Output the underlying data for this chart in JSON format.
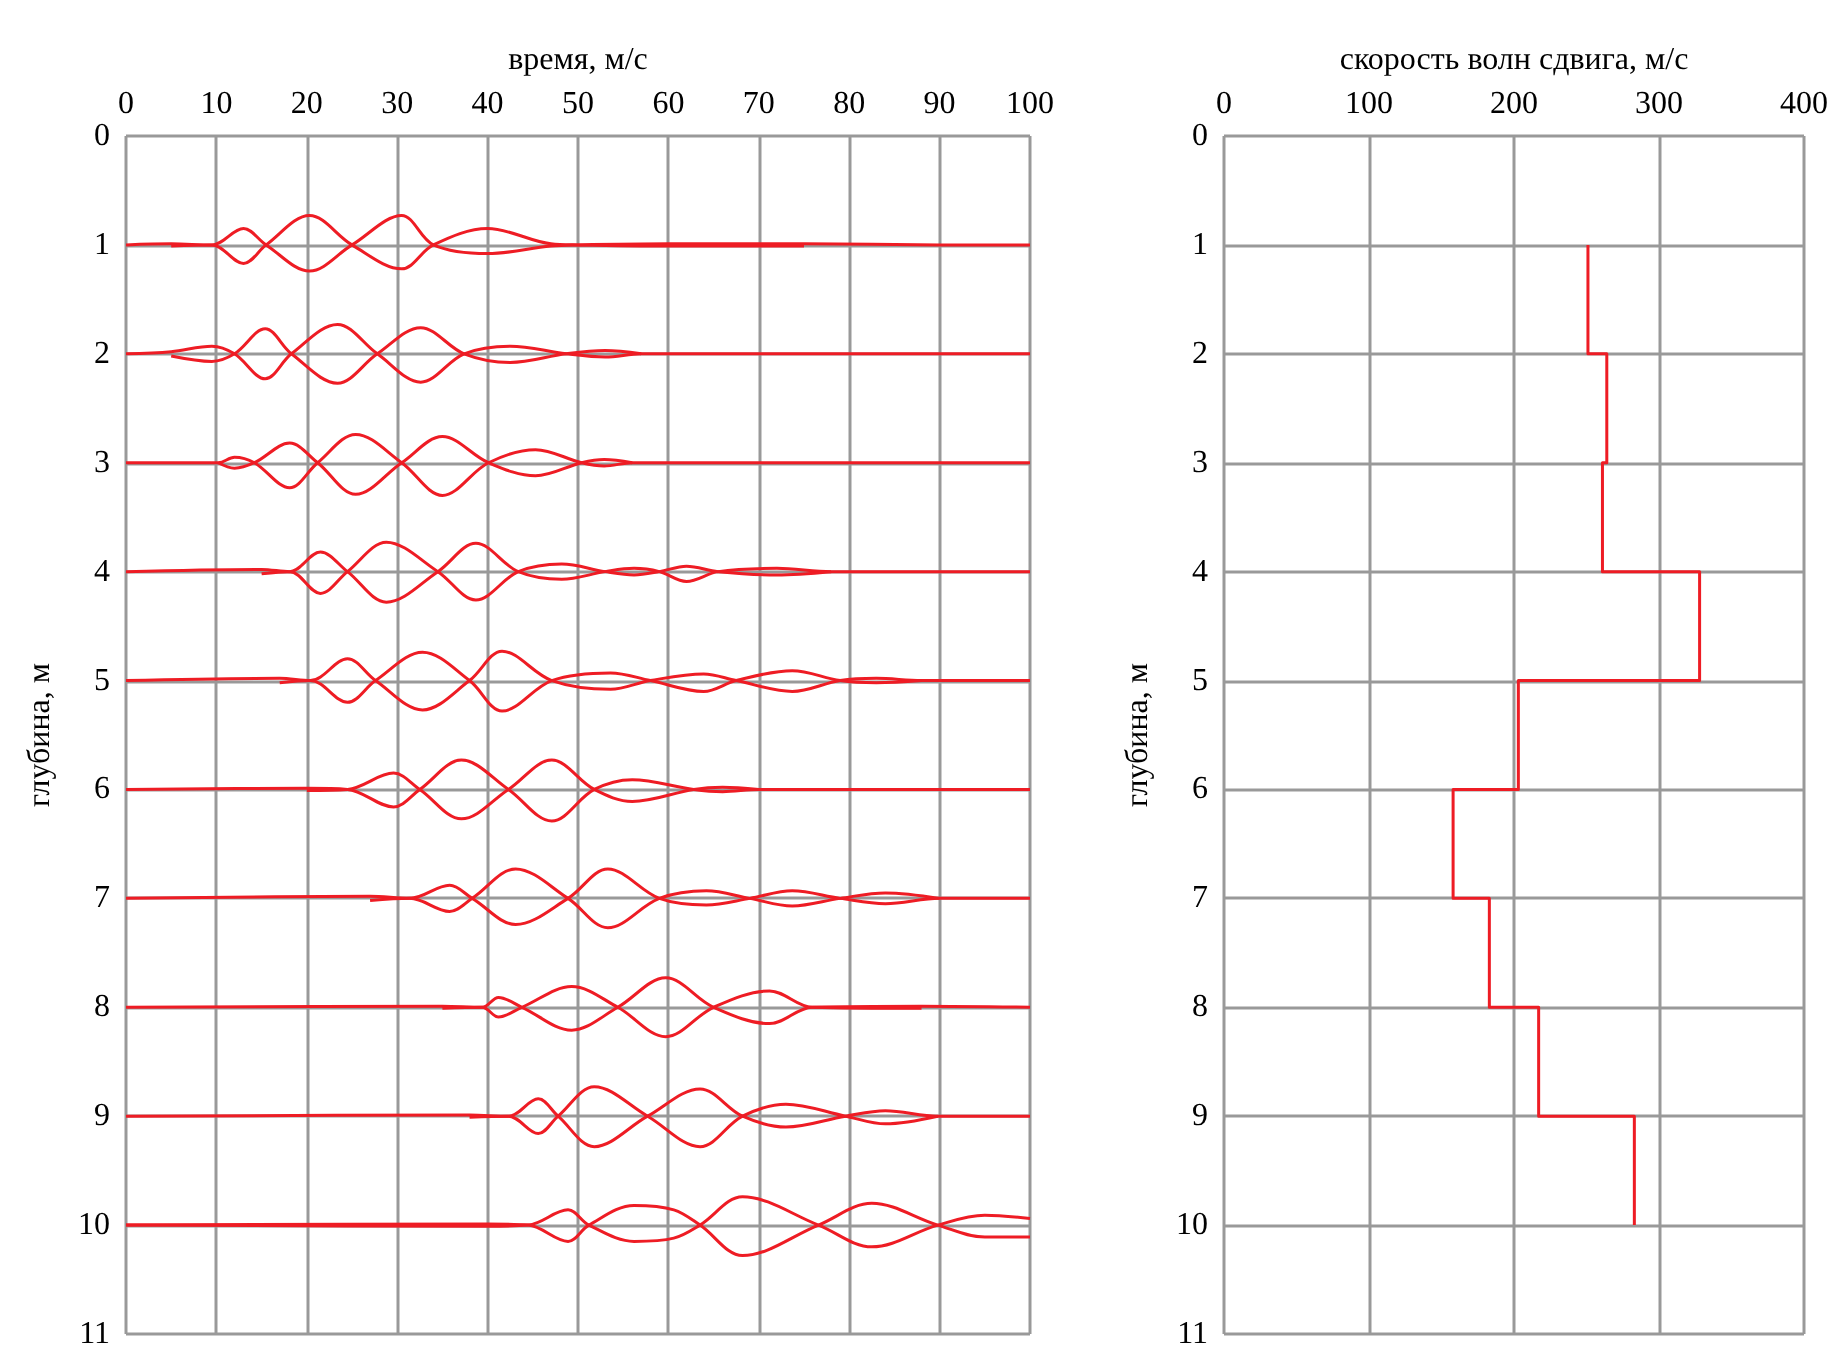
{
  "chart_data": [
    {
      "type": "line",
      "xlabel": "время, м/с",
      "ylabel": "глубина, м",
      "xlim": [
        0,
        100
      ],
      "xticks": [
        0,
        10,
        20,
        30,
        40,
        50,
        60,
        70,
        80,
        90,
        100
      ],
      "ylim": [
        11,
        0
      ],
      "yticks": [
        0,
        1,
        2,
        3,
        4,
        5,
        6,
        7,
        8,
        9,
        10,
        11
      ],
      "grid": true,
      "marker": "none",
      "series": [
        {
          "color": "#ee1c24",
          "x": [
            0,
            5,
            9.5,
            13,
            15.5,
            20.3,
            25,
            30.5,
            34,
            40,
            47,
            50,
            60,
            75,
            90,
            100
          ],
          "values": [
            1,
            0.99,
            1,
            0.85,
            1,
            1.24,
            1,
            0.73,
            1,
            1.08,
            1.01,
            1,
            0.99,
            0.99,
            1,
            1
          ]
        },
        {
          "color": "#ee1c24",
          "x": [
            5,
            9.5,
            13,
            15.5,
            20.3,
            25,
            30.5,
            34,
            40,
            47,
            50,
            60,
            75
          ],
          "values": [
            1.01,
            1,
            1.17,
            1,
            0.73,
            1,
            1.22,
            1,
            0.85,
            0.99,
            1,
            1.01,
            1.01
          ]
        },
        {
          "color": "#ee1c24",
          "x": [
            0,
            5,
            9.5,
            12,
            15.4,
            18.3,
            23.4,
            27.8,
            32.6,
            37.4,
            42.5,
            48.7,
            53,
            57,
            100
          ],
          "values": [
            2,
            1.98,
            1.93,
            2,
            2.23,
            2,
            1.73,
            2,
            2.26,
            2,
            1.93,
            2,
            2.03,
            2,
            2
          ]
        },
        {
          "color": "#ee1c24",
          "x": [
            5,
            9.5,
            12,
            15.4,
            18.3,
            23.4,
            27.8,
            32.6,
            37.4,
            42.5,
            48.7,
            53,
            57
          ],
          "values": [
            2.02,
            2.07,
            2,
            1.77,
            2,
            2.27,
            2,
            1.76,
            2,
            2.08,
            2,
            1.97,
            2
          ]
        },
        {
          "color": "#ee1c24",
          "x": [
            0,
            10.2,
            12,
            14.2,
            18.1,
            21.2,
            25.4,
            30.5,
            35,
            40.1,
            45.3,
            50.4,
            52.9,
            56,
            100
          ],
          "values": [
            3,
            3,
            2.95,
            3,
            3.23,
            3,
            2.74,
            3,
            3.3,
            3,
            2.88,
            3,
            3.03,
            3,
            3
          ]
        },
        {
          "color": "#ee1c24",
          "x": [
            10.2,
            12,
            14.2,
            18.1,
            21.2,
            25.4,
            30.5,
            35,
            40.1,
            45.3,
            50.4,
            52.9,
            56
          ],
          "values": [
            3,
            3.05,
            3,
            2.82,
            3,
            3.29,
            3,
            2.76,
            3,
            3.12,
            3,
            2.97,
            3
          ]
        },
        {
          "color": "#ee1c24",
          "x": [
            0,
            15,
            18.1,
            21.5,
            24.5,
            28.8,
            34.5,
            38.7,
            43.4,
            48.2,
            53,
            56.2,
            59,
            62,
            65.5,
            72,
            78,
            100
          ],
          "values": [
            4,
            3.98,
            4,
            3.82,
            4,
            4.28,
            4,
            3.74,
            4,
            4.07,
            4,
            3.97,
            4,
            4.09,
            4,
            3.97,
            4,
            4
          ]
        },
        {
          "color": "#ee1c24",
          "x": [
            15,
            18.1,
            21.5,
            24.5,
            28.8,
            34.5,
            38.7,
            43.4,
            48.2,
            53,
            56.2,
            59,
            62,
            65.5,
            72,
            78
          ],
          "values": [
            4.02,
            4,
            4.2,
            4,
            3.73,
            4,
            4.26,
            4,
            3.93,
            4,
            4.03,
            4,
            3.95,
            4,
            4.03,
            4
          ]
        },
        {
          "color": "#ee1c24",
          "x": [
            0,
            17,
            20.4,
            24.5,
            27.6,
            32.8,
            38,
            41.6,
            47.1,
            53.6,
            58,
            63.9,
            67.5,
            73.7,
            79,
            83,
            88,
            100
          ],
          "values": [
            5,
            4.98,
            5,
            4.8,
            5,
            5.27,
            5,
            4.73,
            5,
            5.08,
            5,
            4.94,
            5,
            5.1,
            5,
            4.98,
            5,
            5
          ]
        },
        {
          "color": "#ee1c24",
          "x": [
            17,
            20.4,
            24.5,
            27.6,
            32.8,
            38,
            41.6,
            47.1,
            53.6,
            58,
            63.9,
            67.5,
            73.7,
            79,
            83,
            88
          ],
          "values": [
            5.02,
            5,
            5.2,
            5,
            4.74,
            5,
            5.28,
            5,
            4.93,
            5,
            5.1,
            5,
            4.91,
            5,
            5.02,
            5
          ]
        },
        {
          "color": "#ee1c24",
          "x": [
            0,
            20,
            24.5,
            29.6,
            32.5,
            37.1,
            42.3,
            47.1,
            51.8,
            56,
            62.8,
            66,
            70,
            100
          ],
          "values": [
            6,
            5.99,
            6,
            6.16,
            6,
            5.73,
            6,
            6.29,
            6,
            5.91,
            6,
            6.02,
            6,
            6
          ]
        },
        {
          "color": "#ee1c24",
          "x": [
            20,
            24.5,
            29.6,
            32.5,
            37.1,
            42.3,
            47.1,
            51.8,
            56,
            62.8,
            66,
            70
          ],
          "values": [
            6.01,
            6,
            5.85,
            6,
            6.27,
            6,
            5.73,
            6,
            6.11,
            6,
            5.98,
            6
          ]
        },
        {
          "color": "#ee1c24",
          "x": [
            0,
            27,
            31.4,
            35.8,
            38.3,
            43.1,
            48.9,
            53.3,
            59,
            64.2,
            69,
            73.7,
            79,
            84,
            90,
            100
          ],
          "values": [
            7,
            6.98,
            7,
            6.88,
            7,
            7.24,
            7,
            6.73,
            7,
            7.06,
            7,
            6.93,
            7,
            7.05,
            7,
            7
          ]
        },
        {
          "color": "#ee1c24",
          "x": [
            27,
            31.4,
            35.8,
            38.3,
            43.1,
            48.9,
            53.3,
            59,
            64.2,
            69,
            73.7,
            79,
            84,
            90
          ],
          "values": [
            7.02,
            7,
            7.12,
            7,
            6.73,
            7,
            7.27,
            7,
            6.93,
            7,
            7.07,
            7,
            6.95,
            7
          ]
        },
        {
          "color": "#ee1c24",
          "x": [
            0,
            35,
            39.4,
            41.2,
            43.8,
            49.3,
            54.4,
            59.7,
            65,
            71.2,
            75.9,
            88,
            100
          ],
          "values": [
            8,
            7.99,
            8,
            7.91,
            8,
            8.21,
            8,
            7.73,
            8,
            8.15,
            8,
            7.99,
            8
          ]
        },
        {
          "color": "#ee1c24",
          "x": [
            35,
            39.4,
            41.2,
            43.8,
            49.3,
            54.4,
            59.7,
            65,
            71.2,
            75.9,
            88
          ],
          "values": [
            8.01,
            8,
            8.09,
            8,
            7.81,
            8,
            8.27,
            8,
            7.85,
            8,
            8.01
          ]
        },
        {
          "color": "#ee1c24",
          "x": [
            0,
            38,
            42.3,
            45.6,
            47.8,
            51.8,
            57.7,
            63.5,
            68.2,
            73,
            79.6,
            84,
            89.8,
            100
          ],
          "values": [
            9,
            8.99,
            9,
            8.84,
            9,
            9.28,
            9,
            8.75,
            9,
            9.1,
            9,
            8.95,
            9,
            9
          ]
        },
        {
          "color": "#ee1c24",
          "x": [
            38,
            42.3,
            45.6,
            47.8,
            51.8,
            57.7,
            63.5,
            68.2,
            73,
            79.6,
            84,
            89.8
          ],
          "values": [
            9.01,
            9,
            9.16,
            9,
            8.73,
            9,
            9.28,
            9,
            8.89,
            9,
            9.07,
            9
          ]
        },
        {
          "color": "#ee1c24",
          "x": [
            0,
            40,
            44.5,
            48.9,
            51.2,
            56.2,
            60.6,
            63.5,
            68.2,
            76.6,
            82.5,
            89.8,
            95,
            100
          ],
          "values": [
            10,
            9.99,
            10,
            10.15,
            10,
            9.82,
            9.86,
            10,
            10.28,
            10,
            9.8,
            10,
            10.11,
            10.11
          ]
        },
        {
          "color": "#ee1c24",
          "x": [
            0,
            40,
            44.5,
            48.9,
            51.2,
            56.2,
            60.6,
            63.5,
            68.2,
            76.6,
            82.5,
            89.8,
            95,
            100
          ],
          "values": [
            10,
            10.01,
            10,
            9.86,
            10,
            10.15,
            10.12,
            10,
            9.74,
            10,
            10.2,
            10,
            9.91,
            9.94
          ]
        }
      ]
    },
    {
      "type": "step",
      "xlabel": "скорость волн сдвига, м/с",
      "ylabel": "глубина, м",
      "xlim": [
        0,
        400
      ],
      "xticks": [
        0,
        100,
        200,
        300,
        400
      ],
      "ylim": [
        11,
        0
      ],
      "yticks": [
        0,
        1,
        2,
        3,
        4,
        5,
        6,
        7,
        8,
        9,
        10,
        11
      ],
      "grid": true,
      "marker": "none",
      "series": [
        {
          "color": "#ee1c24",
          "x": [
            251,
            251,
            264,
            264,
            261,
            261,
            328,
            328,
            203,
            203,
            158,
            158,
            183,
            183,
            217,
            217,
            283,
            283
          ],
          "values": [
            1,
            2,
            2,
            3,
            3,
            4,
            4,
            5,
            5,
            6,
            6,
            7,
            7,
            8,
            8,
            9,
            9,
            10
          ]
        }
      ]
    }
  ]
}
